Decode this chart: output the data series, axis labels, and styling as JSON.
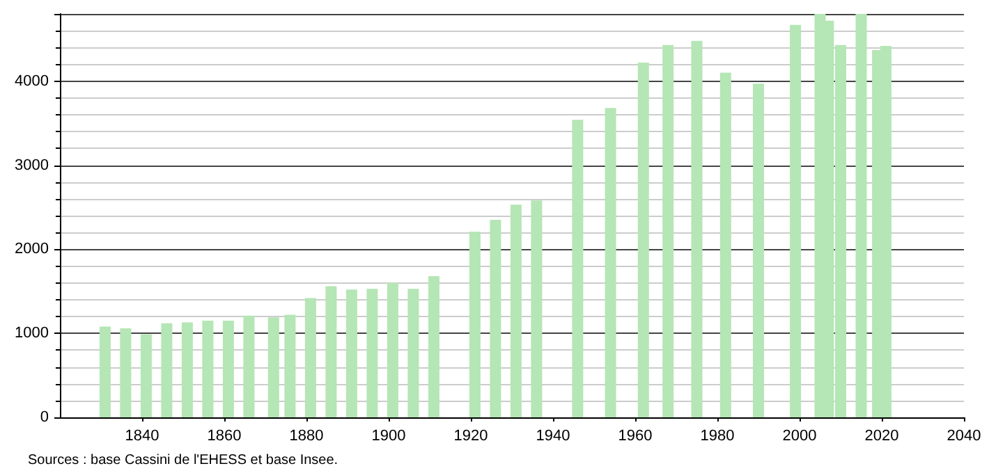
{
  "chart_data": {
    "type": "bar",
    "x": [
      1831,
      1836,
      1841,
      1846,
      1851,
      1856,
      1861,
      1866,
      1872,
      1876,
      1881,
      1886,
      1891,
      1896,
      1901,
      1906,
      1911,
      1921,
      1926,
      1931,
      1936,
      1946,
      1954,
      1962,
      1968,
      1975,
      1982,
      1990,
      1999,
      2005,
      2007,
      2010,
      2015,
      2019,
      2021
    ],
    "values": [
      1080,
      1060,
      990,
      1120,
      1130,
      1150,
      1150,
      1210,
      1190,
      1220,
      1420,
      1560,
      1520,
      1530,
      1600,
      1530,
      1680,
      2210,
      2350,
      2530,
      2580,
      3540,
      3680,
      4220,
      4430,
      4480,
      4100,
      3970,
      4670,
      4800,
      4720,
      4430,
      4800,
      4370,
      4420
    ],
    "color": "#b5e6b5",
    "xlim": [
      1820,
      2040
    ],
    "xticks": [
      1840,
      1860,
      1880,
      1900,
      1920,
      1940,
      1960,
      1980,
      2000,
      2020,
      2040
    ],
    "ylim": [
      0,
      4800
    ],
    "yticks": [
      0,
      {
        "value": 200,
        "label": null
      },
      {
        "value": 400,
        "label": null
      },
      {
        "value": 600,
        "label": null
      },
      {
        "value": 800,
        "label": null
      },
      1000,
      {
        "value": 1200,
        "label": null
      },
      {
        "value": 1400,
        "label": null
      },
      {
        "value": 1600,
        "label": null
      },
      {
        "value": 1800,
        "label": null
      },
      2000,
      {
        "value": 2200,
        "label": null
      },
      {
        "value": 2400,
        "label": null
      },
      {
        "value": 2600,
        "label": null
      },
      {
        "value": 2800,
        "label": null
      },
      3000,
      {
        "value": 3200,
        "label": null
      },
      {
        "value": 3400,
        "label": null
      },
      {
        "value": 3600,
        "label": null
      },
      {
        "value": 3800,
        "label": null
      },
      4000,
      {
        "value": 4200,
        "label": null
      },
      {
        "value": 4400,
        "label": null
      },
      {
        "value": 4600,
        "label": null
      },
      {
        "value": 4800,
        "label": null
      }
    ],
    "grid": "y",
    "annotations": [
      "Sources : base Cassini de l'EHESS et base Insee."
    ]
  }
}
